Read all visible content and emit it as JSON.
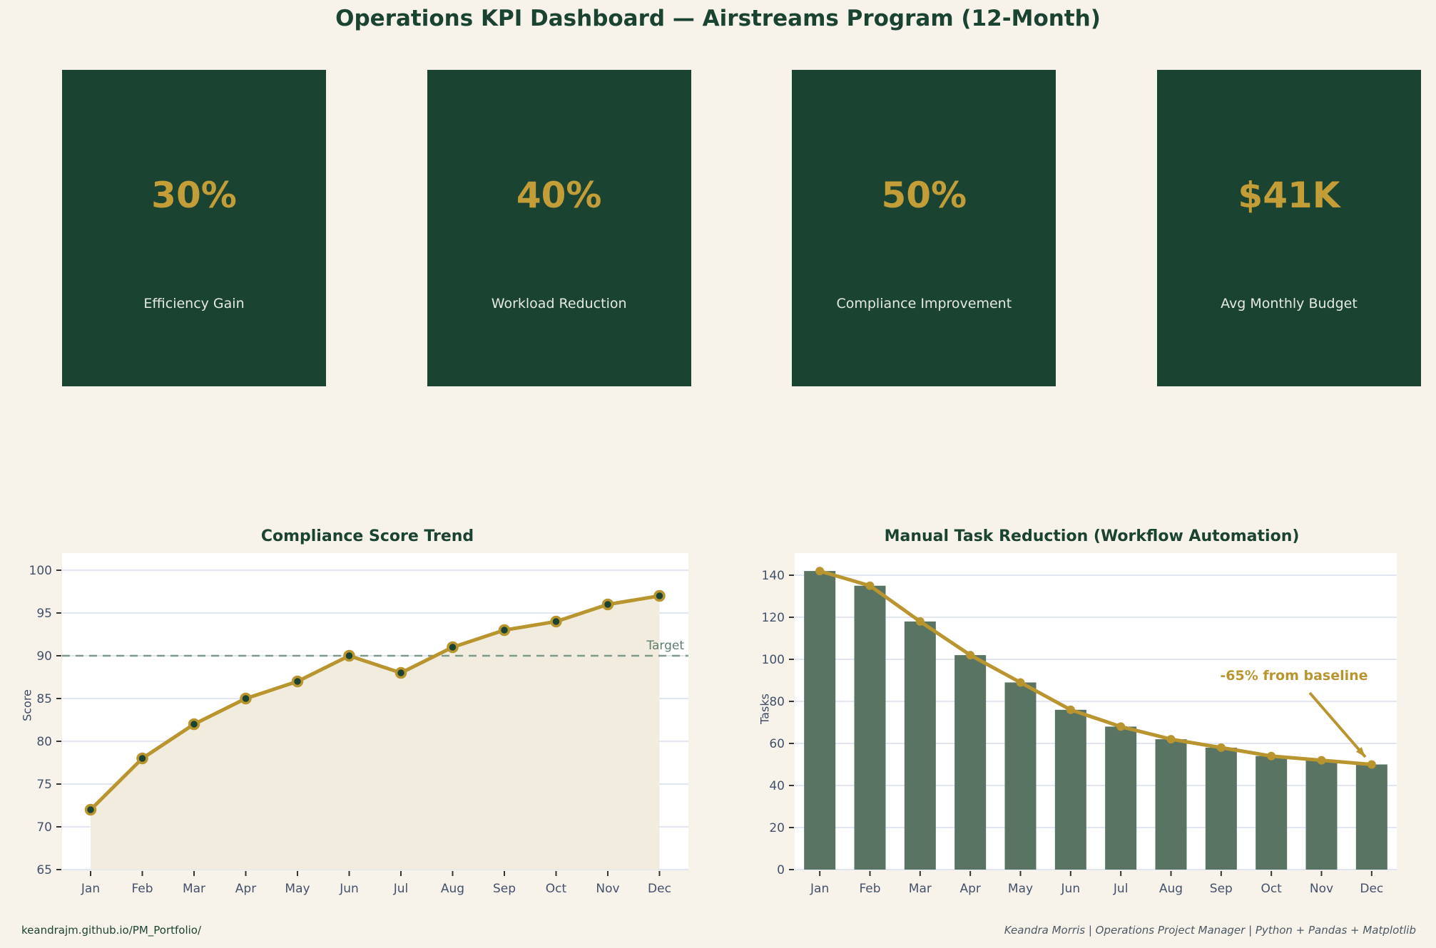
{
  "header": {
    "title": "Operations KPI Dashboard — Airstreams Program (12-Month)"
  },
  "kpi_cards": [
    {
      "value": "30%",
      "label": "Efficiency Gain"
    },
    {
      "value": "40%",
      "label": "Workload Reduction"
    },
    {
      "value": "50%",
      "label": "Compliance Improvement"
    },
    {
      "value": "$41K",
      "label": "Avg Monthly Budget"
    }
  ],
  "chart_data": [
    {
      "type": "line",
      "title": "Compliance Score Trend",
      "xlabel": "",
      "ylabel": "Score",
      "categories": [
        "Jan",
        "Feb",
        "Mar",
        "Apr",
        "May",
        "Jun",
        "Jul",
        "Aug",
        "Sep",
        "Oct",
        "Nov",
        "Dec"
      ],
      "values": [
        72,
        78,
        82,
        85,
        87,
        90,
        88,
        91,
        93,
        94,
        96,
        97
      ],
      "target_line": {
        "value": 90,
        "label": "Target"
      },
      "ylim": [
        65,
        102
      ],
      "yticks": [
        65,
        70,
        75,
        80,
        85,
        90,
        95,
        100
      ],
      "grid": true,
      "area_fill": true,
      "legend": "none"
    },
    {
      "type": "bar",
      "title": "Manual Task Reduction (Workflow Automation)",
      "xlabel": "",
      "ylabel": "Tasks",
      "categories": [
        "Jan",
        "Feb",
        "Mar",
        "Apr",
        "May",
        "Jun",
        "Jul",
        "Aug",
        "Sep",
        "Oct",
        "Nov",
        "Dec"
      ],
      "series": [
        {
          "name": "manual-tasks-bars",
          "type": "bar",
          "values": [
            142,
            135,
            118,
            102,
            89,
            76,
            68,
            62,
            58,
            54,
            52,
            50
          ]
        },
        {
          "name": "manual-tasks-line",
          "type": "line",
          "values": [
            142,
            135,
            118,
            102,
            89,
            76,
            68,
            62,
            58,
            54,
            52,
            50
          ]
        }
      ],
      "annotation": {
        "text": "-65% from baseline",
        "points_to": "Dec"
      },
      "ylim": [
        0,
        150
      ],
      "yticks": [
        0,
        20,
        40,
        60,
        80,
        100,
        120,
        140
      ],
      "grid": true,
      "legend": "none"
    }
  ],
  "footer": {
    "left": "keandrajm.github.io/PM_Portfolio/",
    "right": "Keandra Morris | Operations Project Manager | Python + Pandas + Matplotlib"
  },
  "colors": {
    "background": "#f7f3eb",
    "dark_green": "#1b4332",
    "gold": "#b9952f",
    "kpi_value_gold": "#c29d38",
    "bar_green": "#5a7464",
    "area_fill": "#f1ecdd",
    "gridline": "#e2e6f0",
    "tick_text": "#44516a",
    "target_line": "#7d9a8c",
    "plot_background": "#ffffff"
  }
}
